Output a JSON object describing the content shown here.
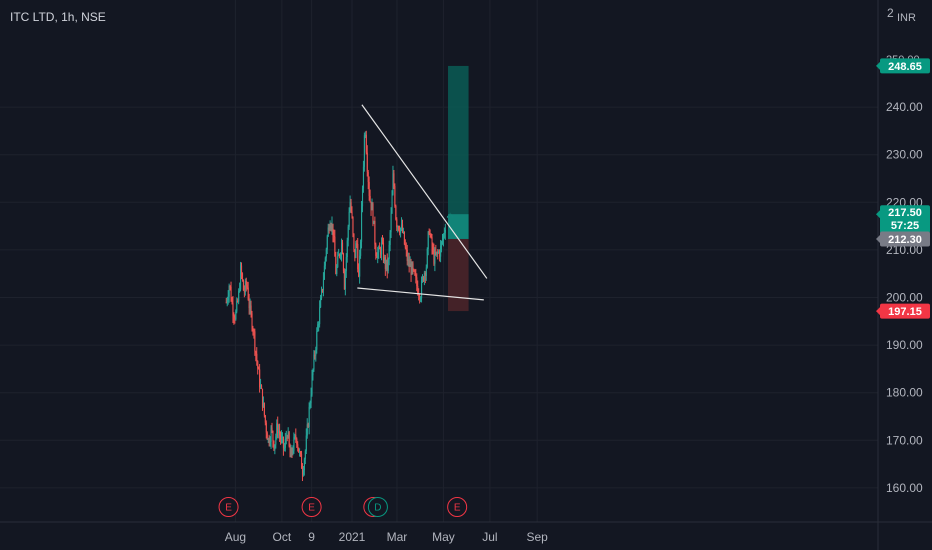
{
  "header": {
    "title": "ITC LTD, 1h, NSE",
    "currency": "INR"
  },
  "axis_labels": {
    "top_cut": "2",
    "hidden_level": "250.00"
  },
  "chart_data": {
    "type": "candlestick",
    "title": "ITC LTD, 1h, NSE",
    "currency": "INR",
    "ylim": [
      155,
      262
    ],
    "y_ticks": [
      "160.00",
      "170.00",
      "180.00",
      "190.00",
      "200.00",
      "210.00",
      "220.00",
      "230.00",
      "240.00"
    ],
    "x_ticks": [
      "Aug",
      "Oct",
      "9",
      "2021",
      "Mar",
      "May",
      "Jul",
      "Sep"
    ],
    "price_path": [
      [
        "2020-07-20",
        199
      ],
      [
        "2020-07-24",
        203
      ],
      [
        "2020-07-28",
        198
      ],
      [
        "2020-08-01",
        196
      ],
      [
        "2020-08-05",
        200
      ],
      [
        "2020-08-08",
        206
      ],
      [
        "2020-08-12",
        201
      ],
      [
        "2020-08-16",
        203
      ],
      [
        "2020-08-20",
        197
      ],
      [
        "2020-08-24",
        194
      ],
      [
        "2020-08-28",
        188
      ],
      [
        "2020-09-01",
        183
      ],
      [
        "2020-09-05",
        179
      ],
      [
        "2020-09-09",
        174
      ],
      [
        "2020-09-13",
        170
      ],
      [
        "2020-09-17",
        172
      ],
      [
        "2020-09-21",
        169
      ],
      [
        "2020-09-25",
        173
      ],
      [
        "2020-09-30",
        170
      ],
      [
        "2020-10-04",
        168
      ],
      [
        "2020-10-08",
        172
      ],
      [
        "2020-10-12",
        166
      ],
      [
        "2020-10-16",
        169
      ],
      [
        "2020-10-20",
        171
      ],
      [
        "2020-10-24",
        167
      ],
      [
        "2020-10-28",
        164
      ],
      [
        "2020-11-01",
        168
      ],
      [
        "2020-11-05",
        175
      ],
      [
        "2020-11-09",
        182
      ],
      [
        "2020-11-13",
        188
      ],
      [
        "2020-11-17",
        194
      ],
      [
        "2020-11-21",
        199
      ],
      [
        "2020-11-25",
        205
      ],
      [
        "2020-11-29",
        212
      ],
      [
        "2020-12-03",
        217
      ],
      [
        "2020-12-07",
        214
      ],
      [
        "2020-12-11",
        205
      ],
      [
        "2020-12-15",
        209
      ],
      [
        "2020-12-19",
        212
      ],
      [
        "2020-12-22",
        203
      ],
      [
        "2020-12-26",
        212
      ],
      [
        "2020-12-29",
        221
      ],
      [
        "2021-01-01",
        216
      ],
      [
        "2021-01-04",
        208
      ],
      [
        "2021-01-07",
        212
      ],
      [
        "2021-01-10",
        203
      ],
      [
        "2021-01-14",
        220
      ],
      [
        "2021-01-18",
        237
      ],
      [
        "2021-01-21",
        228
      ],
      [
        "2021-01-24",
        221
      ],
      [
        "2021-01-28",
        218
      ],
      [
        "2021-02-01",
        210
      ],
      [
        "2021-02-05",
        209
      ],
      [
        "2021-02-09",
        211
      ],
      [
        "2021-02-13",
        207
      ],
      [
        "2021-02-17",
        206
      ],
      [
        "2021-02-21",
        216
      ],
      [
        "2021-02-24",
        226
      ],
      [
        "2021-02-28",
        216
      ],
      [
        "2021-03-04",
        215
      ],
      [
        "2021-03-08",
        214
      ],
      [
        "2021-03-12",
        210
      ],
      [
        "2021-03-16",
        207
      ],
      [
        "2021-03-20",
        206
      ],
      [
        "2021-03-24",
        204
      ],
      [
        "2021-03-28",
        202
      ],
      [
        "2021-04-01",
        201
      ],
      [
        "2021-04-05",
        205
      ],
      [
        "2021-04-09",
        207
      ],
      [
        "2021-04-12",
        215
      ],
      [
        "2021-04-15",
        211
      ],
      [
        "2021-04-19",
        208
      ],
      [
        "2021-04-23",
        209
      ],
      [
        "2021-04-27",
        210
      ],
      [
        "2021-05-01",
        213
      ],
      [
        "2021-05-04",
        216
      ]
    ],
    "trendlines": [
      {
        "from": [
          "2021-01-14",
          240.5
        ],
        "to": [
          "2021-06-27",
          204
        ]
      },
      {
        "from": [
          "2021-01-08",
          202
        ],
        "to": [
          "2021-06-23",
          199.5
        ]
      }
    ],
    "position": {
      "entry": 212.3,
      "target": 248.65,
      "stop": 197.15,
      "start_date": "2021-05-07",
      "end_date": "2021-06-03"
    },
    "price_labels": [
      {
        "value": "248.65",
        "color": "#089981",
        "text_color": "#ffffff"
      },
      {
        "value": "217.50",
        "sub": "57:25",
        "color": "#089981",
        "text_color": "#ffffff"
      },
      {
        "value": "212.30",
        "color": "#787b86",
        "text_color": "#ffffff"
      },
      {
        "value": "197.15",
        "color": "#f23645",
        "text_color": "#ffffff"
      }
    ],
    "events": [
      {
        "letter": "E",
        "date": "2020-07-23",
        "color": "#f23645"
      },
      {
        "letter": "E",
        "date": "2020-11-09",
        "color": "#f23645"
      },
      {
        "letter": "E",
        "date": "2021-01-29",
        "color": "#f23645"
      },
      {
        "letter": "D",
        "date": "2021-02-04",
        "color": "#089981"
      },
      {
        "letter": "E",
        "date": "2021-05-19",
        "color": "#f23645"
      }
    ],
    "colors": {
      "up": "#26a69a",
      "down": "#ef5350",
      "grid": "#1e222d",
      "text": "#b2b5be"
    }
  }
}
